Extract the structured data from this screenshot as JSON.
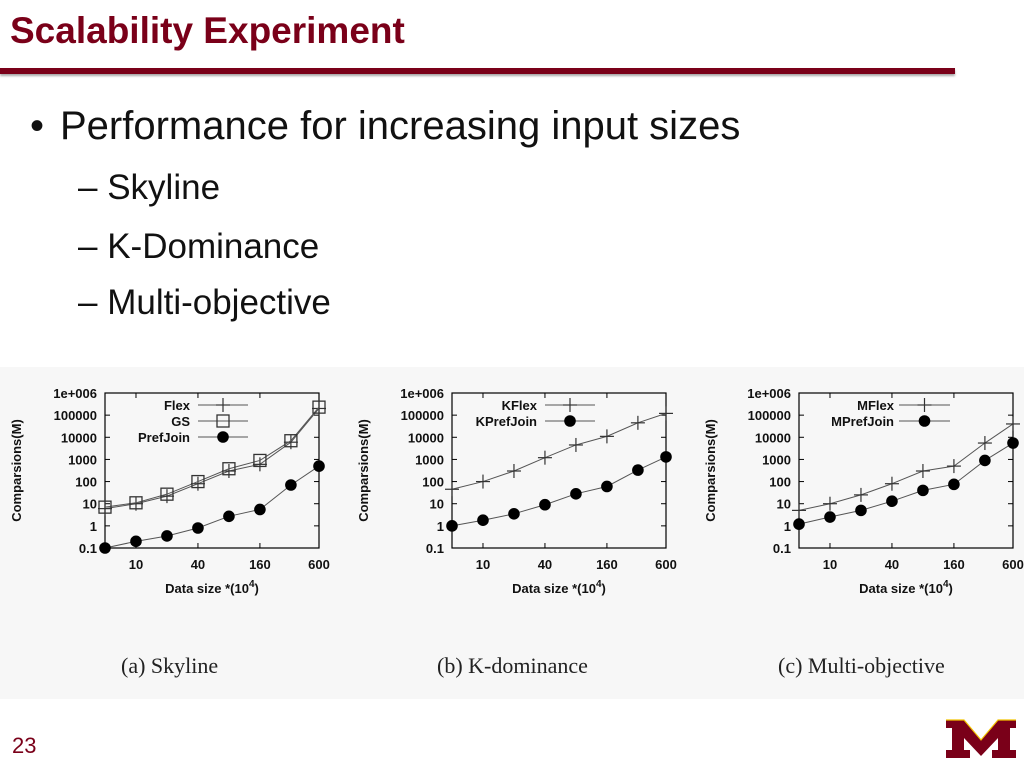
{
  "slide": {
    "title": "Scalability Experiment",
    "bullet": "Performance for increasing input sizes",
    "bullet_glyph": "•",
    "sub_dash": "–",
    "subs": [
      "Skyline",
      "K-Dominance",
      "Multi-objective"
    ],
    "page_number": "23",
    "accent_color": "#7a0019",
    "logo_icon": "university-m-logo"
  },
  "chart_data": [
    {
      "type": "line",
      "caption": "(a)  Skyline",
      "xlabel": "Data size *(10",
      "xlabel_sup": "4",
      "xlabel_close": ")",
      "ylabel": "Comparsions(M)",
      "y_scale": "log",
      "ylim": [
        0.1,
        1000000
      ],
      "y_ticks": [
        "0.1",
        "1",
        "10",
        "100",
        "1000",
        "10000",
        "100000",
        "1e+006"
      ],
      "x_tick_labels": [
        "10",
        "40",
        "160",
        "600"
      ],
      "x_tick_at": [
        10,
        40,
        160,
        600
      ],
      "x": [
        5,
        10,
        20,
        40,
        80,
        160,
        320,
        600
      ],
      "legend_position": "top-right",
      "series": [
        {
          "name": "Flex",
          "marker": "plus",
          "values": [
            6,
            10,
            22,
            80,
            300,
            600,
            6000,
            200000
          ]
        },
        {
          "name": "GS",
          "marker": "square",
          "values": [
            7,
            11,
            27,
            100,
            380,
            900,
            7000,
            230000
          ]
        },
        {
          "name": "PrefJoin",
          "marker": "dot",
          "values": [
            0.1,
            0.2,
            0.35,
            0.8,
            2.7,
            5.5,
            70,
            500
          ]
        }
      ]
    },
    {
      "type": "line",
      "caption": "(b)  K-dominance",
      "xlabel": "Data size *(10",
      "xlabel_sup": "4",
      "xlabel_close": ")",
      "ylabel": "Comparsions(M)",
      "y_scale": "log",
      "ylim": [
        0.1,
        1000000
      ],
      "y_ticks": [
        "0.1",
        "1",
        "10",
        "100",
        "1000",
        "10000",
        "100000",
        "1e+006"
      ],
      "x_tick_labels": [
        "10",
        "40",
        "160",
        "600"
      ],
      "x_tick_at": [
        10,
        40,
        160,
        600
      ],
      "x": [
        5,
        10,
        20,
        40,
        80,
        160,
        320,
        600
      ],
      "legend_position": "top-right",
      "series": [
        {
          "name": "KFlex",
          "marker": "plus",
          "values": [
            45,
            100,
            300,
            1200,
            4500,
            11000,
            45000,
            120000
          ]
        },
        {
          "name": "KPrefJoin",
          "marker": "dot",
          "values": [
            1,
            1.8,
            3.5,
            9,
            28,
            60,
            330,
            1300
          ]
        }
      ]
    },
    {
      "type": "line",
      "caption": "(c)  Multi-objective",
      "xlabel": "Data size *(10",
      "xlabel_sup": "4",
      "xlabel_close": ")",
      "ylabel": "Comparsions(M)",
      "y_scale": "log",
      "ylim": [
        0.1,
        1000000
      ],
      "y_ticks": [
        "0.1",
        "1",
        "10",
        "100",
        "1000",
        "10000",
        "100000",
        "1e+006"
      ],
      "x_tick_labels": [
        "10",
        "40",
        "160",
        "600"
      ],
      "x_tick_at": [
        10,
        40,
        160,
        600
      ],
      "x": [
        5,
        10,
        20,
        40,
        80,
        160,
        320,
        600
      ],
      "legend_position": "top-left",
      "series": [
        {
          "name": "MFlex",
          "marker": "plus",
          "values": [
            5,
            10,
            25,
            80,
            300,
            500,
            5500,
            40000
          ]
        },
        {
          "name": "MPrefJoin",
          "marker": "dot",
          "values": [
            1.2,
            2.5,
            5,
            13,
            40,
            75,
            900,
            5500
          ]
        }
      ]
    }
  ]
}
